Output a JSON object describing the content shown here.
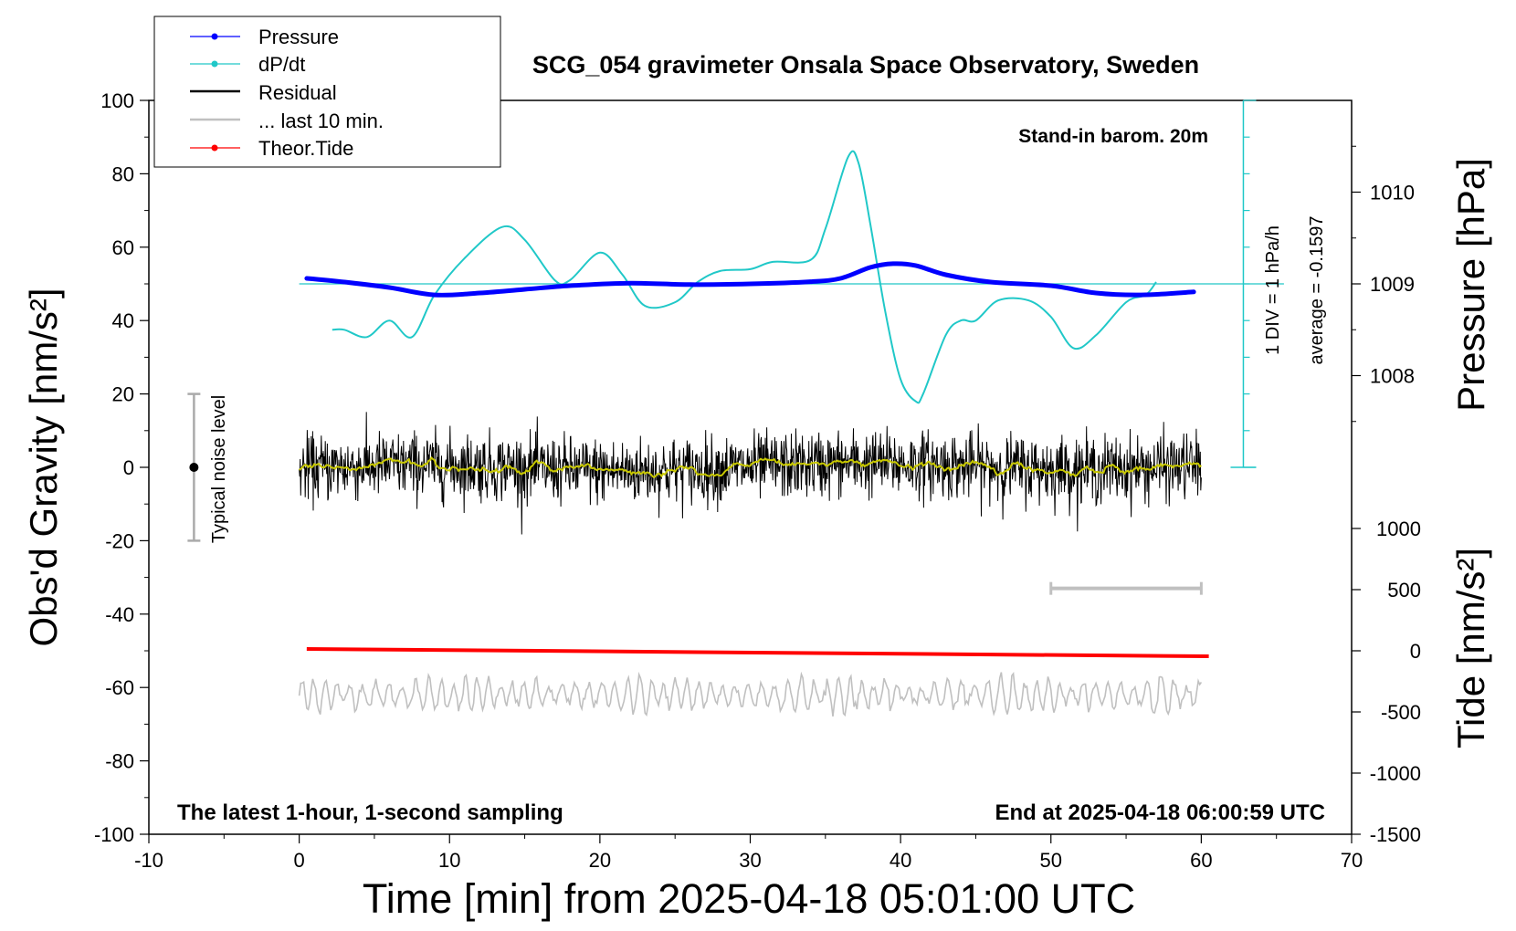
{
  "chart_data": {
    "type": "line",
    "title": "SCG_054 gravimeter Onsala Space Observatory, Sweden",
    "xlabel": "Time [min] from 2025-04-18 05:01:00 UTC",
    "ylabel": "Obs'd Gravity [nm/s²]",
    "y2label": "Pressure [hPa]",
    "y3label": "Tide [nm/s²]",
    "xlim": [
      -10,
      70
    ],
    "ylim": [
      -100,
      100
    ],
    "pressure_lim": [
      1007,
      1011
    ],
    "tide_lim": [
      -1500,
      1000
    ],
    "x_ticks": [
      "-10",
      "0",
      "10",
      "20",
      "30",
      "40",
      "50",
      "60",
      "70"
    ],
    "y_ticks": [
      "100",
      "80",
      "60",
      "40",
      "20",
      "0",
      "-20",
      "-40",
      "-60",
      "-80",
      "-100"
    ],
    "pressure_ticks": [
      "1010",
      "1009",
      "1008"
    ],
    "tide_ticks": [
      "1000",
      "500",
      "0",
      "-500",
      "-1000",
      "-1500"
    ],
    "annotations": {
      "barometer": "Stand-in barom. 20m",
      "div": "1 DIV = 1 hPa/h",
      "average": "average = -0.1597",
      "noise": "Typical noise level",
      "bottom_left": "The latest 1-hour, 1-second sampling",
      "bottom_right": "End at 2025-04-18 06:00:59 UTC"
    },
    "legend": [
      {
        "label": "Pressure",
        "color": "#0000ff"
      },
      {
        "label": "dP/dt",
        "color": "#20c8c8"
      },
      {
        "label": "Residual",
        "color": "#000000"
      },
      {
        "label": "... last 10 min.",
        "color": "#c0c0c0"
      },
      {
        "label": "Theor.Tide",
        "color": "#ff0000"
      }
    ],
    "legend_position": "top-left",
    "colors": {
      "pressure": "#0000ff",
      "dpdt": "#20c8c8",
      "residual": "#000000",
      "residual_smooth": "#c8c800",
      "last10": "#c0c0c0",
      "tide": "#ff0000"
    },
    "series": [
      {
        "name": "Pressure (gravity-axis units)",
        "x": [
          0.5,
          3,
          6,
          9,
          12,
          15,
          18,
          22,
          26,
          30,
          34,
          36,
          38,
          39.5,
          41,
          43,
          46,
          50,
          53,
          56,
          59.5
        ],
        "values": [
          51.5,
          50.5,
          49,
          47,
          47.5,
          48.5,
          49.5,
          50.2,
          49.8,
          50,
          50.6,
          51.5,
          54.5,
          55.5,
          55,
          52.5,
          50.5,
          49.5,
          47.5,
          47,
          47.8
        ]
      },
      {
        "name": "dP/dt (gravity-axis units)",
        "x": [
          2.2,
          3,
          4.5,
          6,
          7.5,
          9,
          11,
          13.5,
          15,
          17,
          18,
          20,
          21.5,
          23,
          25,
          26.5,
          28,
          30,
          31.5,
          34,
          35,
          36.5,
          37.2,
          38,
          39,
          40,
          41,
          41.5,
          43,
          44,
          45,
          46.5,
          48.5,
          50,
          51.5,
          53,
          55,
          56.3,
          57
        ],
        "values": [
          37.5,
          37.5,
          35.5,
          40,
          35.5,
          47,
          57,
          65.5,
          62,
          51,
          51,
          58.5,
          52.5,
          44,
          45,
          50.5,
          53.5,
          54,
          56,
          56.5,
          65,
          84.5,
          83,
          66,
          42,
          24,
          18,
          20,
          36,
          40,
          40,
          45.5,
          45.5,
          41,
          32.5,
          36,
          45,
          47,
          50.5
        ]
      },
      {
        "name": "Residual",
        "x_range": [
          0,
          60
        ],
        "noise_std": 4.5
      },
      {
        "name": "Theor.Tide (gravity-axis units)",
        "x": [
          0.5,
          60.5
        ],
        "values": [
          -49.5,
          -51.5
        ]
      },
      {
        "name": "... last 10 min.",
        "x_range": [
          0,
          60
        ],
        "center": -62,
        "amplitude": 5
      },
      {
        "name": "10-minute reference bar",
        "x": [
          50,
          60
        ],
        "values": [
          -33,
          -33
        ]
      },
      {
        "name": "Typical noise level",
        "x": [
          -7,
          -7
        ],
        "values": [
          -20,
          20
        ]
      }
    ]
  }
}
